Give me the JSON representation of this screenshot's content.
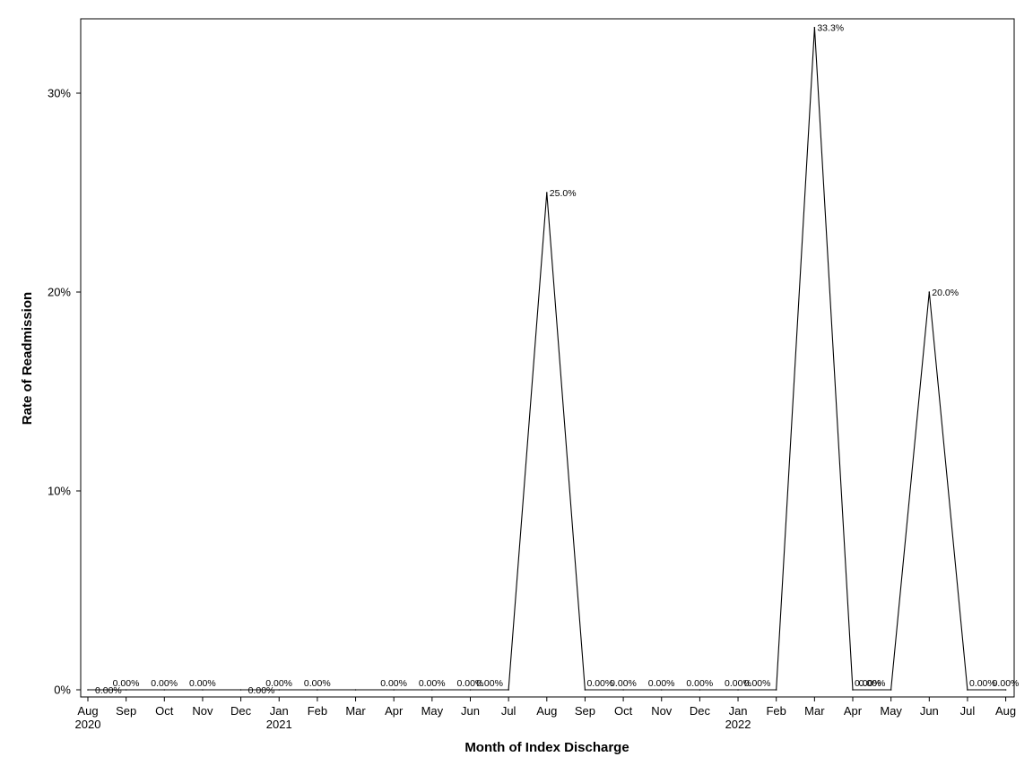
{
  "chart_data": {
    "type": "line",
    "title": "",
    "xlabel": "Month of Index Discharge",
    "ylabel": "Rate of Readmission",
    "ylim": [
      0,
      33.3
    ],
    "yticks": [
      0,
      10,
      20,
      30
    ],
    "ytick_labels": [
      "0%",
      "10%",
      "20%",
      "30%"
    ],
    "grid": false,
    "x": [
      "2020-08",
      "2020-09",
      "2020-10",
      "2020-11",
      "2020-12",
      "2021-01",
      "2021-02",
      "2021-03",
      "2021-04",
      "2021-05",
      "2021-06",
      "2021-07",
      "2021-08",
      "2021-09",
      "2021-10",
      "2021-11",
      "2021-12",
      "2022-01",
      "2022-02",
      "2022-03",
      "2022-04",
      "2022-05",
      "2022-06",
      "2022-07",
      "2022-08"
    ],
    "xtick_labels": [
      {
        "month": "Aug",
        "year": "2020"
      },
      {
        "month": "Sep",
        "year": ""
      },
      {
        "month": "Oct",
        "year": ""
      },
      {
        "month": "Nov",
        "year": ""
      },
      {
        "month": "Dec",
        "year": ""
      },
      {
        "month": "Jan",
        "year": "2021"
      },
      {
        "month": "Feb",
        "year": ""
      },
      {
        "month": "Mar",
        "year": ""
      },
      {
        "month": "Apr",
        "year": ""
      },
      {
        "month": "May",
        "year": ""
      },
      {
        "month": "Jun",
        "year": ""
      },
      {
        "month": "Jul",
        "year": ""
      },
      {
        "month": "Aug",
        "year": ""
      },
      {
        "month": "Sep",
        "year": ""
      },
      {
        "month": "Oct",
        "year": ""
      },
      {
        "month": "Nov",
        "year": ""
      },
      {
        "month": "Dec",
        "year": ""
      },
      {
        "month": "Jan",
        "year": "2022"
      },
      {
        "month": "Feb",
        "year": ""
      },
      {
        "month": "Mar",
        "year": ""
      },
      {
        "month": "Apr",
        "year": ""
      },
      {
        "month": "May",
        "year": ""
      },
      {
        "month": "Jun",
        "year": ""
      },
      {
        "month": "Jul",
        "year": ""
      },
      {
        "month": "Aug",
        "year": ""
      }
    ],
    "series": [
      {
        "values": [
          0,
          0,
          0,
          0,
          0,
          0,
          0,
          0,
          0,
          0,
          0,
          0,
          25,
          0,
          0,
          0,
          0,
          0,
          0,
          33.3,
          0,
          0,
          20,
          0,
          0
        ],
        "data_labels": [
          {
            "x": "2020-08",
            "text": "0.00%"
          },
          {
            "x": "2020-09",
            "text": "0.00%"
          },
          {
            "x": "2020-10",
            "text": "0.00%"
          },
          {
            "x": "2020-11",
            "text": "0.00%"
          },
          {
            "x": "2020-12",
            "text": "0.00%"
          },
          {
            "x": "2021-01",
            "text": "0.00%"
          },
          {
            "x": "2021-02",
            "text": "0.00%"
          },
          {
            "x": "2021-04",
            "text": "0.00%"
          },
          {
            "x": "2021-05",
            "text": "0.00%"
          },
          {
            "x": "2021-06",
            "text": "0.00%"
          },
          {
            "x": "2021-07",
            "text": "0.00%"
          },
          {
            "x": "2021-08",
            "text": "25.0%"
          },
          {
            "x": "2021-09",
            "text": "0.00%"
          },
          {
            "x": "2021-10",
            "text": "0.00%"
          },
          {
            "x": "2021-11",
            "text": "0.00%"
          },
          {
            "x": "2021-12",
            "text": "0.00%"
          },
          {
            "x": "2022-01",
            "text": "0.00%"
          },
          {
            "x": "2022-02",
            "text": "0.00%"
          },
          {
            "x": "2022-03",
            "text": "33.3%"
          },
          {
            "x": "2022-04",
            "text": "0.00%"
          },
          {
            "x": "2022-05",
            "text": "0.00%"
          },
          {
            "x": "2022-06",
            "text": "20.0%"
          },
          {
            "x": "2022-07",
            "text": "0.00%"
          },
          {
            "x": "2022-08",
            "text": "0.00%"
          }
        ]
      }
    ],
    "colors": {
      "line": "#000000",
      "axis": "#000000",
      "background": "#ffffff"
    }
  }
}
